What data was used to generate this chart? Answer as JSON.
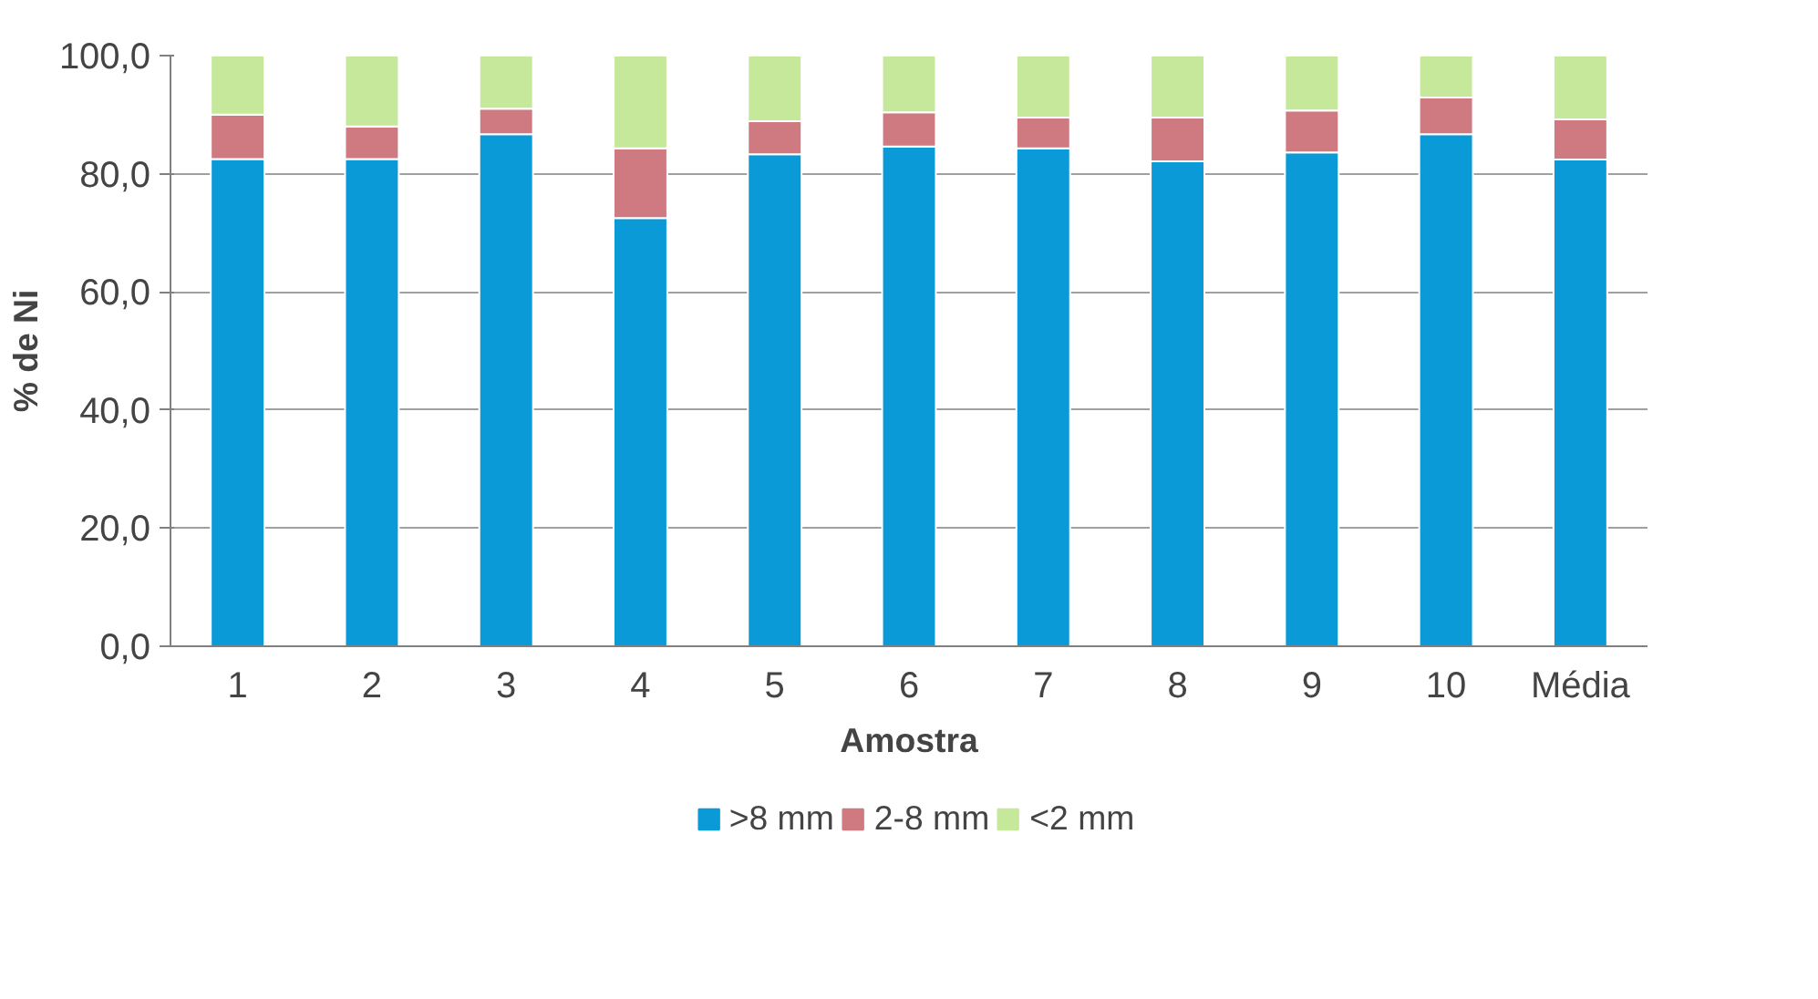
{
  "chart_data": {
    "type": "bar",
    "stacked": true,
    "xlabel": "Amostra",
    "ylabel": "% de Ni",
    "categories": [
      "1",
      "2",
      "3",
      "4",
      "5",
      "6",
      "7",
      "8",
      "9",
      "10",
      "Média"
    ],
    "series": [
      {
        "name": ">8 mm",
        "color": "#0b9ad8",
        "values": [
          82.5,
          82.5,
          86.7,
          72.5,
          83.3,
          84.6,
          84.3,
          82.1,
          83.6,
          86.7,
          82.4
        ]
      },
      {
        "name": "2-8 mm",
        "color": "#cf7a80",
        "values": [
          7.5,
          5.5,
          4.3,
          11.8,
          5.6,
          5.8,
          5.2,
          7.4,
          7.1,
          6.2,
          6.8
        ]
      },
      {
        "name": "<2 mm",
        "color": "#c6e89a",
        "values": [
          10.0,
          12.0,
          9.0,
          15.7,
          11.1,
          9.6,
          10.5,
          10.5,
          9.3,
          7.1,
          10.8
        ]
      }
    ],
    "ylim": [
      0,
      100
    ],
    "yticks": [
      {
        "value": 0,
        "label": "0,0"
      },
      {
        "value": 20,
        "label": "20,0"
      },
      {
        "value": 40,
        "label": "40,0"
      },
      {
        "value": 60,
        "label": "60,0"
      },
      {
        "value": 80,
        "label": "80,0"
      },
      {
        "value": 100,
        "label": "100,0"
      }
    ],
    "grid": "y",
    "legend": "bottom"
  }
}
